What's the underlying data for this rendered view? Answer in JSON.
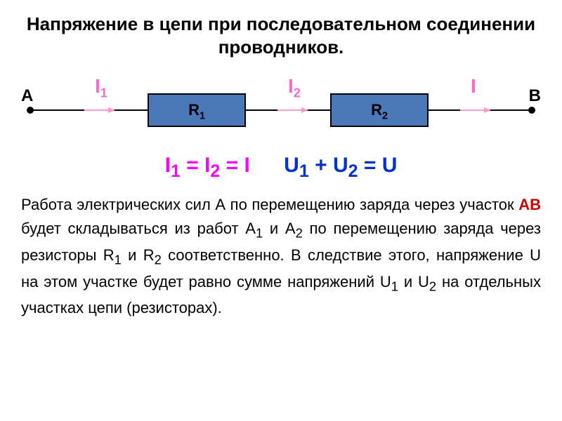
{
  "title": "Напряжение в цепи при последовательном соединении проводников.",
  "circuit": {
    "pointA": "A",
    "pointB": "B",
    "resistor1_base": "R",
    "resistor1_sub": "1",
    "resistor2_base": "R",
    "resistor2_sub": "2",
    "I1_base": "I",
    "I1_sub": "1",
    "I2_base": "I",
    "I2_sub": "2",
    "I_label": "I",
    "resistor_fill": "#4a78b8",
    "wire_color": "#000000",
    "arrow_color": "#ff99cc",
    "current_label_color": "#ff66cc"
  },
  "equations": {
    "current_html": "I<sub>1</sub> = I<sub>2</sub> = I",
    "voltage_html": "U<sub>1</sub> + U<sub>2</sub> = U",
    "current_color": "#ff00ff",
    "voltage_color": "#0033cc"
  },
  "paragraph": {
    "p1": "Работа электрических сил А по перемещению заряда через участок ",
    "AB": "АВ",
    "p2_html": " будет складываться из работ А<sub>1</sub> и А<sub>2</sub> по перемещению заряда через резисторы R<sub>1</sub> и R<sub>2</sub> соответственно. В следствие этого, напряжение U на этом участке будет равно сумме напряжений U<sub>1</sub> и U<sub>2</sub> на отдельных участках цепи (резисторах)."
  }
}
